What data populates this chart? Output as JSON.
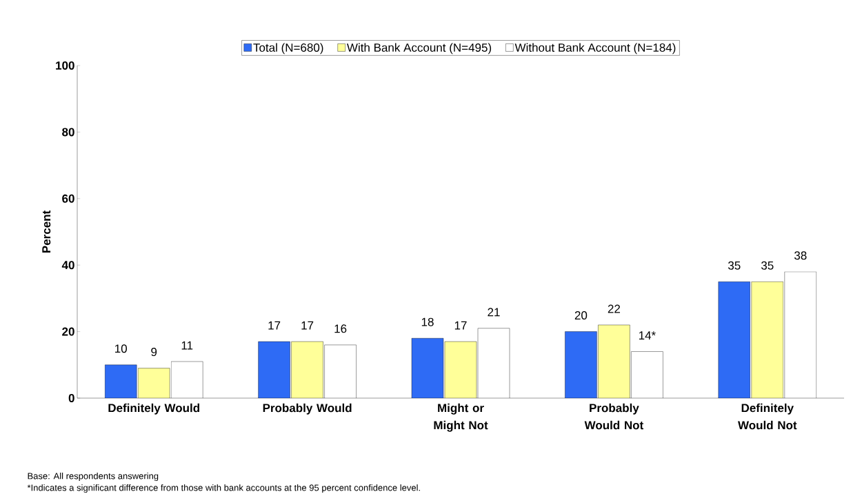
{
  "chart_data": {
    "type": "bar",
    "categories": [
      "Definitely Would",
      "Probably Would",
      "Might or Might Not",
      "Probably Would Not",
      "Definitely Would Not"
    ],
    "series": [
      {
        "name": "Total (N=680)",
        "color": "#2e6bf5",
        "values": [
          10,
          17,
          18,
          20,
          35
        ],
        "value_labels": [
          "10",
          "17",
          "18",
          "20",
          "35"
        ]
      },
      {
        "name": "With Bank Account (N=495)",
        "color": "#ffff99",
        "values": [
          9,
          17,
          17,
          22,
          35
        ],
        "value_labels": [
          "9",
          "17",
          "17",
          "22",
          "35"
        ]
      },
      {
        "name": "Without Bank Account (N=184)",
        "color": "#ffffff",
        "values": [
          11,
          16,
          21,
          14,
          38
        ],
        "value_labels": [
          "11",
          "16",
          "21",
          "14*",
          "38"
        ]
      }
    ],
    "ylabel": "Percent",
    "ylim": [
      0,
      100
    ],
    "yticks": [
      0,
      20,
      40,
      60,
      80,
      100
    ],
    "legend": "top",
    "annotations": [
      "Base:    All respondents answering",
      "*Indicates a significant difference from those with bank accounts at the 95 percent confidence level."
    ]
  }
}
